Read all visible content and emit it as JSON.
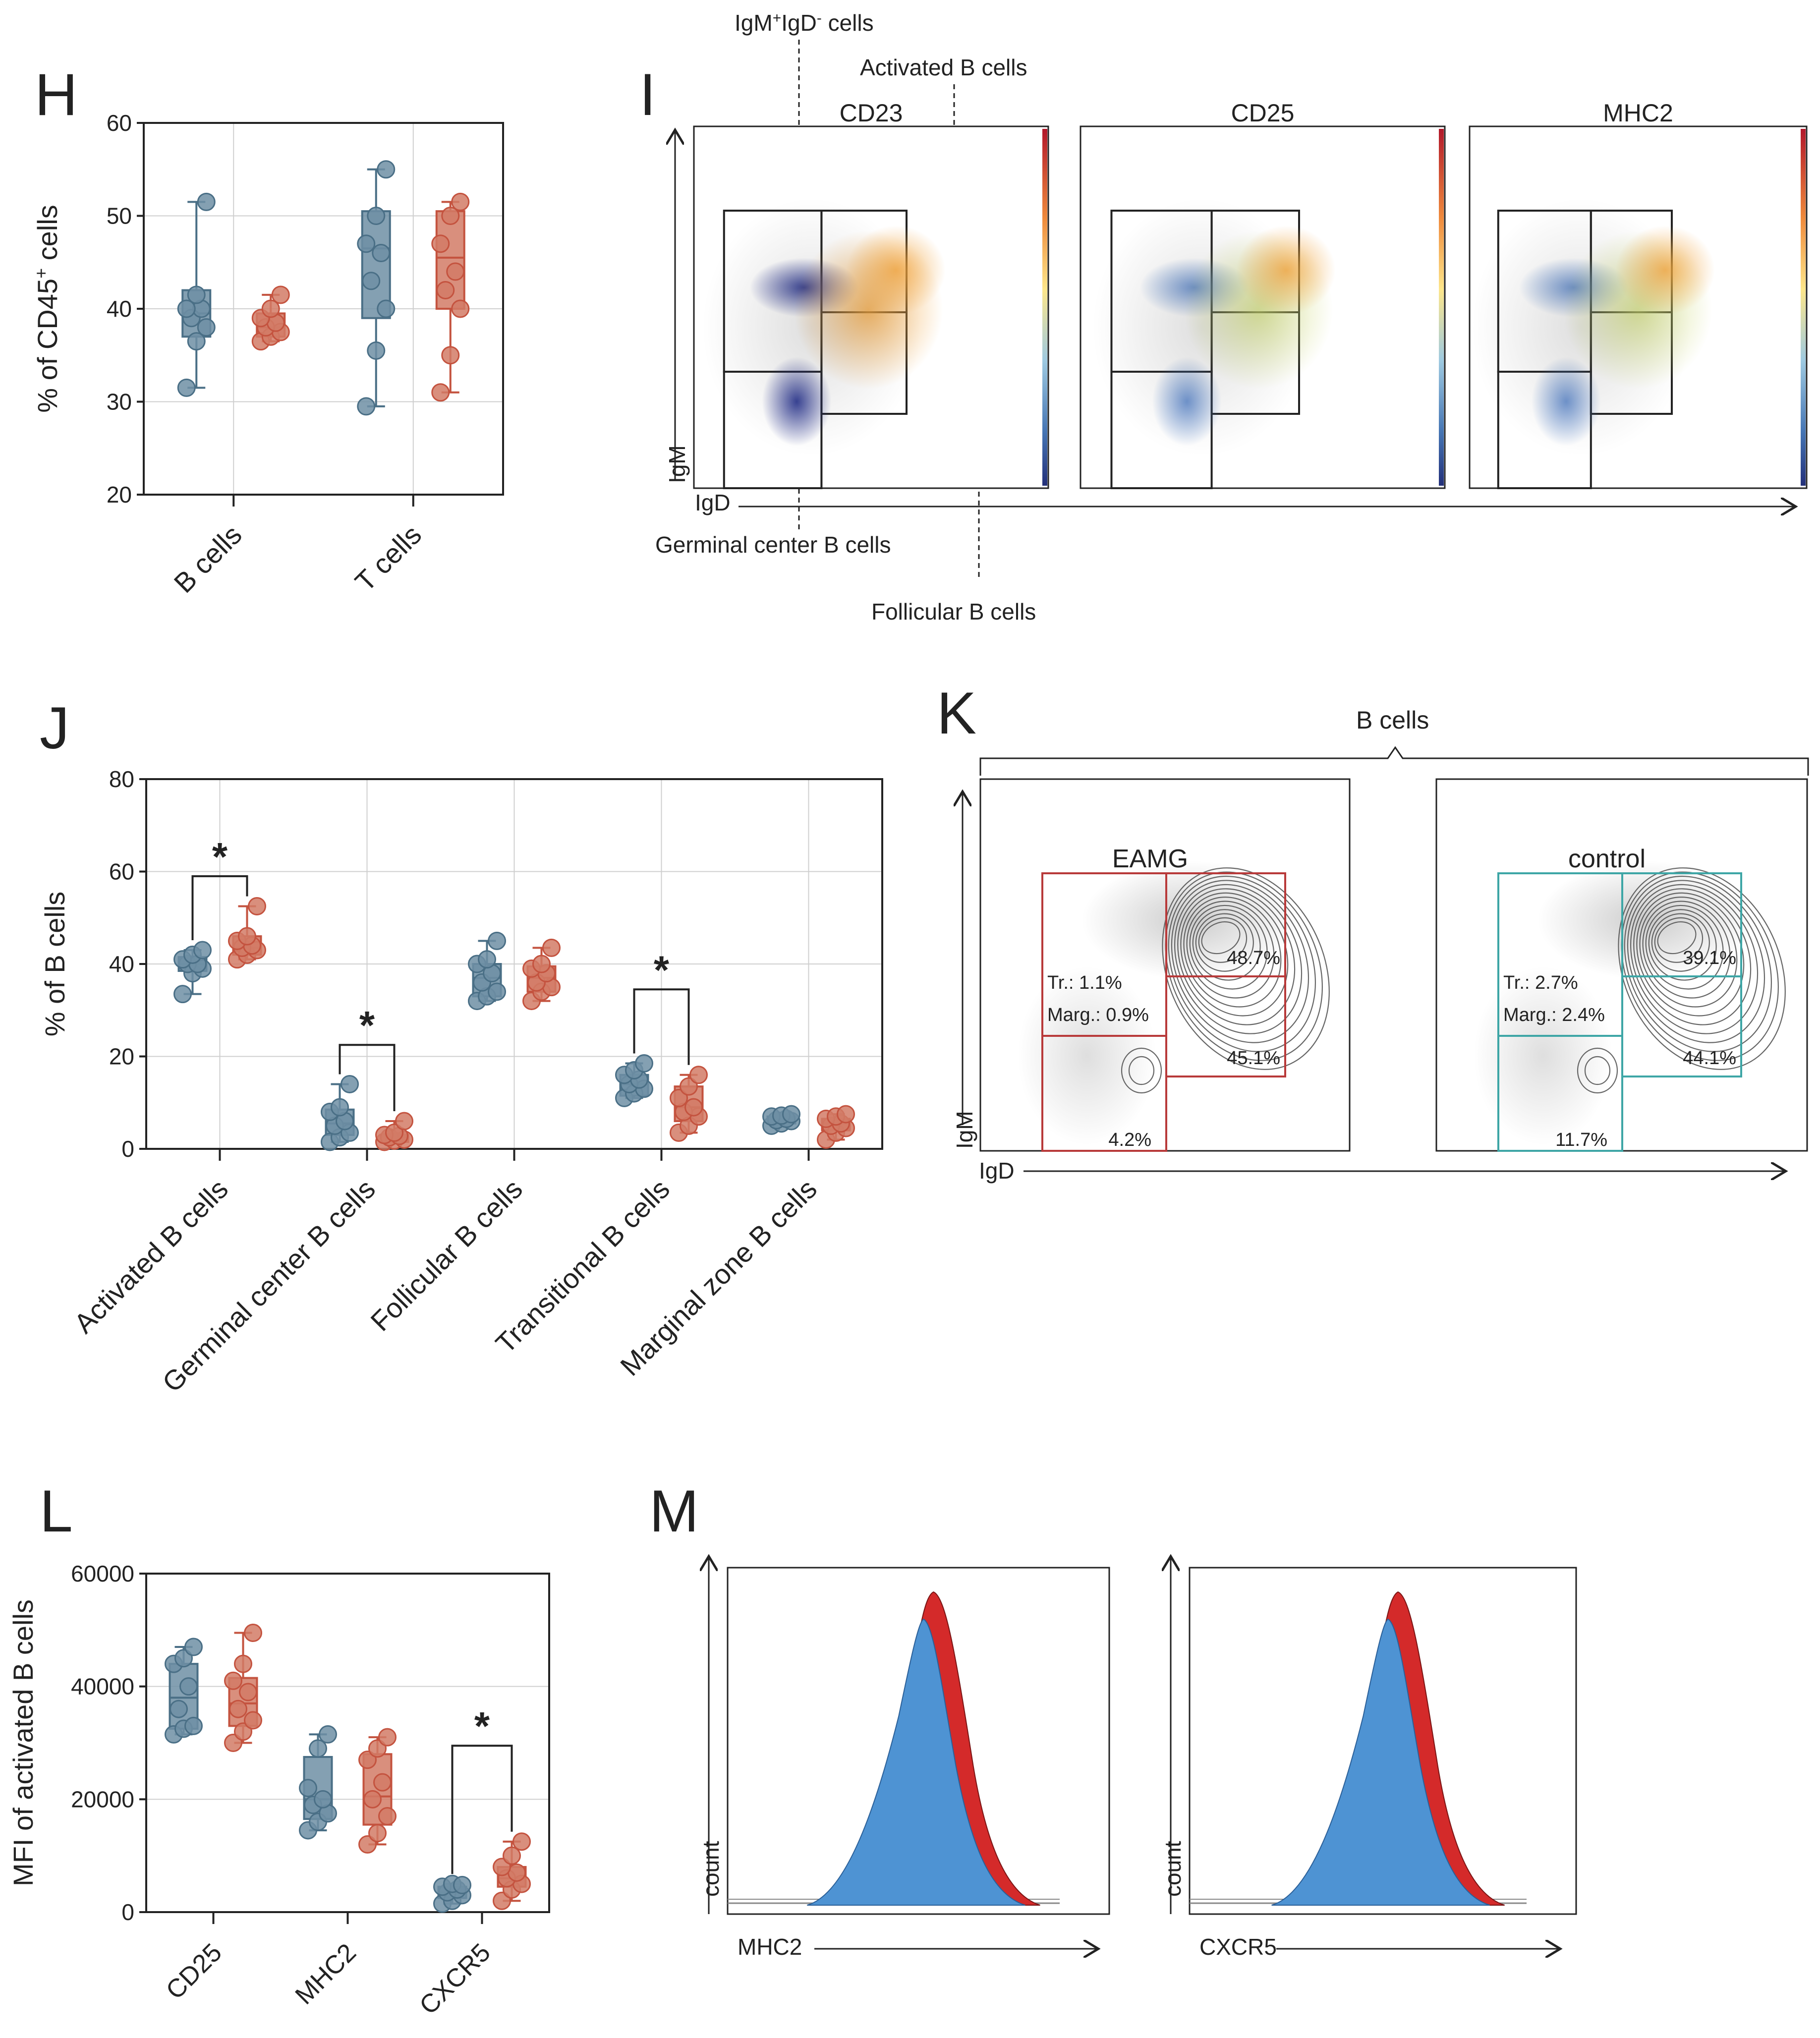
{
  "colors": {
    "control": "#4a6f86",
    "eamg": "#c4533f",
    "control_fill": "#6f8fa5",
    "eamg_fill": "#d27b66",
    "hist_red": "#d42a2a",
    "hist_blue": "#4e93d3",
    "gate_red": "#b83a3a",
    "gate_teal": "#3ea6a6"
  },
  "panels": {
    "H": {
      "letter": "H"
    },
    "I": {
      "letter": "I",
      "channels": [
        "CD23",
        "CD25",
        "MHC2"
      ],
      "ylabel": "IgM",
      "xlabel": "IgD",
      "callouts": {
        "igm_igd": "IgM",
        "igm_sup": "+",
        "igd_part": "IgD",
        "igd_sup": "-",
        "cells": " cells",
        "activated": "Activated B cells",
        "germinal": "Germinal center B cells",
        "follicular": "Follicular B cells"
      }
    },
    "J": {
      "letter": "J"
    },
    "K": {
      "letter": "K",
      "group_label": "B cells",
      "ylabel": "IgM",
      "xlabel": "IgD",
      "eamg": {
        "title": "EAMG",
        "act": "48.7%",
        "fol": "45.1%",
        "gc": "4.2%",
        "tr": "Tr.: 1.1%",
        "marg": "Marg.: 0.9%"
      },
      "control": {
        "title": "control",
        "act": "39.1%",
        "fol": "44.1%",
        "gc": "11.7%",
        "tr": "Tr.: 2.7%",
        "marg": "Marg.: 2.4%"
      }
    },
    "L": {
      "letter": "L"
    },
    "M": {
      "letter": "M",
      "ylabel": "count",
      "xlabels": [
        "MHC2",
        "CXCR5"
      ]
    }
  },
  "chart_data": [
    {
      "id": "H",
      "type": "box",
      "title": "",
      "ylabel": "% of CD45",
      "ylabel_sup": "+",
      "ylabel_tail": " cells",
      "ylim": [
        20,
        60
      ],
      "yticks": [
        20,
        30,
        40,
        50,
        60
      ],
      "categories": [
        "B cells",
        "T cells"
      ],
      "series": [
        {
          "name": "control",
          "stats": [
            {
              "min": 31.5,
              "q1": 37,
              "median": 39.5,
              "q3": 42,
              "max": 51.5
            },
            {
              "min": 29.5,
              "q1": 39,
              "median": 46.5,
              "q3": 50.5,
              "max": 55
            }
          ],
          "points": [
            [
              31.5,
              36.5,
              38,
              39,
              40,
              40,
              41.5,
              51.5
            ],
            [
              29.5,
              35.5,
              40,
              43,
              46,
              47,
              50,
              55
            ]
          ]
        },
        {
          "name": "EAMG",
          "stats": [
            {
              "min": 36.5,
              "q1": 37,
              "median": 38,
              "q3": 39.5,
              "max": 41.5
            },
            {
              "min": 31,
              "q1": 40,
              "median": 45.5,
              "q3": 50.5,
              "max": 51.5
            }
          ],
          "points": [
            [
              36.5,
              37,
              37.5,
              38,
              38.5,
              39,
              40,
              41.5
            ],
            [
              31,
              35,
              40,
              42,
              44,
              47,
              50,
              51.5
            ]
          ]
        }
      ],
      "sig": []
    },
    {
      "id": "J",
      "type": "box",
      "title": "",
      "ylabel": "% of B cells",
      "ylim": [
        0,
        80
      ],
      "yticks": [
        0,
        20,
        40,
        60,
        80
      ],
      "categories": [
        "Activated B cells",
        "Germinal center B cells",
        "Follicular B cells",
        "Transitional B cells",
        "Marginal zone B cells"
      ],
      "series": [
        {
          "name": "control",
          "stats": [
            {
              "min": 33.5,
              "q1": 38.5,
              "median": 40,
              "q3": 41.5,
              "max": 43
            },
            {
              "min": 1.5,
              "q1": 3,
              "median": 5.5,
              "q3": 8.5,
              "max": 14
            },
            {
              "min": 32,
              "q1": 33,
              "median": 37,
              "q3": 40,
              "max": 45
            },
            {
              "min": 11,
              "q1": 11.5,
              "median": 14,
              "q3": 16,
              "max": 18.5
            },
            {
              "min": 5,
              "q1": 5.5,
              "median": 6.5,
              "q3": 7,
              "max": 7.5
            }
          ],
          "points": [
            [
              33.5,
              38,
              39,
              40,
              40,
              41,
              42,
              43
            ],
            [
              1.5,
              2.5,
              3.5,
              5,
              6,
              8,
              9,
              14
            ],
            [
              32,
              33,
              34,
              36,
              38,
              40,
              41,
              45
            ],
            [
              11,
              12,
              13,
              14,
              15,
              16,
              17,
              18.5
            ],
            [
              5,
              5.5,
              6,
              6.2,
              6.5,
              7,
              7.2,
              7.5
            ]
          ]
        },
        {
          "name": "EAMG",
          "stats": [
            {
              "min": 41,
              "q1": 42,
              "median": 43.5,
              "q3": 46,
              "max": 52.5
            },
            {
              "min": 1.5,
              "q1": 1.5,
              "median": 2.5,
              "q3": 3,
              "max": 6
            },
            {
              "min": 32,
              "q1": 34,
              "median": 37,
              "q3": 39.5,
              "max": 43.5
            },
            {
              "min": 3.5,
              "q1": 6,
              "median": 9,
              "q3": 13.5,
              "max": 16
            },
            {
              "min": 2,
              "q1": 4,
              "median": 5.5,
              "q3": 6.5,
              "max": 7.5
            }
          ],
          "points": [
            [
              41,
              42,
              43,
              43.5,
              44,
              45,
              46,
              52.5
            ],
            [
              1.5,
              1.8,
              2,
              2.5,
              2.8,
              3,
              3.5,
              6
            ],
            [
              32,
              34,
              35,
              36,
              38,
              39,
              40,
              43.5
            ],
            [
              3.5,
              5,
              7,
              8,
              9,
              11,
              13.5,
              16
            ],
            [
              2,
              3.5,
              4.5,
              5,
              5.5,
              6.5,
              7,
              7.5
            ]
          ]
        }
      ],
      "sig": [
        {
          "cat": 0,
          "label": "*",
          "y": 59
        },
        {
          "cat": 1,
          "label": "*",
          "y": 22.5
        },
        {
          "cat": 3,
          "label": "*",
          "y": 34.5
        }
      ]
    },
    {
      "id": "L",
      "type": "box",
      "title": "",
      "ylabel": "MFI of activated B cells",
      "ylim": [
        0,
        60000
      ],
      "yticks": [
        0,
        20000,
        40000,
        60000
      ],
      "categories": [
        "CD25",
        "MHC2",
        "CXCR5"
      ],
      "series": [
        {
          "name": "control",
          "stats": [
            {
              "min": 31500,
              "q1": 32500,
              "median": 38000,
              "q3": 44000,
              "max": 47000
            },
            {
              "min": 14500,
              "q1": 16500,
              "median": 20000,
              "q3": 27500,
              "max": 31500
            },
            {
              "min": 1500,
              "q1": 2500,
              "median": 3500,
              "q3": 4500,
              "max": 5000
            }
          ],
          "points": [
            [
              31500,
              32500,
              33000,
              36000,
              40000,
              44000,
              45000,
              47000
            ],
            [
              14500,
              16000,
              17500,
              19000,
              20000,
              22000,
              29000,
              31500
            ],
            [
              1500,
              2000,
              3000,
              3500,
              4000,
              4500,
              5000,
              4800
            ]
          ]
        },
        {
          "name": "EAMG",
          "stats": [
            {
              "min": 30000,
              "q1": 33000,
              "median": 37000,
              "q3": 41500,
              "max": 49500
            },
            {
              "min": 12000,
              "q1": 15500,
              "median": 20500,
              "q3": 28000,
              "max": 31000
            },
            {
              "min": 2000,
              "q1": 4500,
              "median": 6000,
              "q3": 8000,
              "max": 12500
            }
          ],
          "points": [
            [
              30000,
              32000,
              34000,
              36000,
              39000,
              41000,
              44000,
              49500
            ],
            [
              12000,
              14000,
              17000,
              20000,
              23000,
              27000,
              29000,
              31000
            ],
            [
              2000,
              4000,
              5000,
              6000,
              7000,
              8000,
              10000,
              12500
            ]
          ]
        }
      ],
      "sig": [
        {
          "cat": 2,
          "label": "*",
          "y": 29500
        }
      ]
    }
  ]
}
